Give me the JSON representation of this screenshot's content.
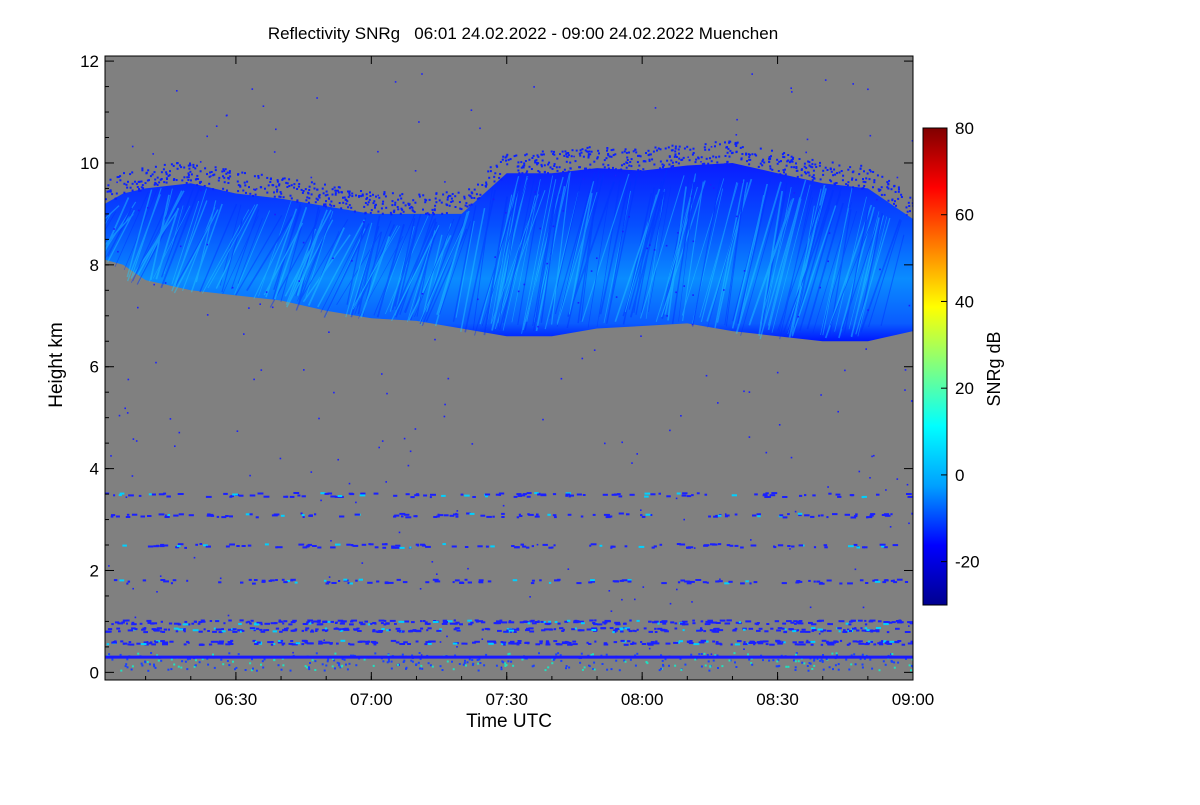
{
  "chart_data": {
    "type": "heatmap",
    "title": "Reflectivity SNRg   06:01 24.02.2022 - 09:00 24.02.2022 Muenchen",
    "xlabel": "Time UTC",
    "ylabel": "Height km",
    "x_range": [
      "06:01",
      "09:00"
    ],
    "xlim_minutes_utc": [
      361,
      540
    ],
    "x_ticks": [
      {
        "label": "06:30",
        "minutes": 390
      },
      {
        "label": "07:00",
        "minutes": 420
      },
      {
        "label": "07:30",
        "minutes": 450
      },
      {
        "label": "08:00",
        "minutes": 480
      },
      {
        "label": "08:30",
        "minutes": 510
      },
      {
        "label": "09:00",
        "minutes": 540
      }
    ],
    "y_ticks": [
      {
        "label": "0",
        "value": 0
      },
      {
        "label": "2",
        "value": 2
      },
      {
        "label": "4",
        "value": 4
      },
      {
        "label": "6",
        "value": 6
      },
      {
        "label": "8",
        "value": 8
      },
      {
        "label": "10",
        "value": 10
      },
      {
        "label": "12",
        "value": 12
      }
    ],
    "ylim": [
      -0.15,
      12.1
    ],
    "background_color": "#808080",
    "colorbar": {
      "label": "SNRg dB",
      "range": [
        -30,
        80
      ],
      "ticks": [
        {
          "label": "-20",
          "value": -20
        },
        {
          "label": "0",
          "value": 0
        },
        {
          "label": "20",
          "value": 20
        },
        {
          "label": "40",
          "value": 40
        },
        {
          "label": "60",
          "value": 60
        },
        {
          "label": "80",
          "value": 80
        }
      ],
      "colormap": [
        "#00008f",
        "#0000ff",
        "#00a0ff",
        "#00ffff",
        "#80ff80",
        "#ffff00",
        "#ff8000",
        "#ff0000",
        "#800000"
      ]
    },
    "cloud_layer": {
      "x_minutes": [
        361,
        365,
        370,
        380,
        390,
        400,
        410,
        420,
        430,
        440,
        450,
        460,
        470,
        480,
        490,
        500,
        510,
        520,
        530,
        540
      ],
      "base_km": [
        8.1,
        8.0,
        7.7,
        7.5,
        7.4,
        7.3,
        7.1,
        6.95,
        6.9,
        6.75,
        6.6,
        6.6,
        6.75,
        6.8,
        6.85,
        6.7,
        6.6,
        6.5,
        6.5,
        6.7
      ],
      "top_km": [
        9.2,
        9.4,
        9.5,
        9.6,
        9.4,
        9.3,
        9.15,
        9.0,
        9.0,
        9.0,
        9.8,
        9.8,
        9.9,
        9.85,
        9.95,
        10.0,
        9.8,
        9.6,
        9.5,
        8.9
      ],
      "snr_db": "-25 to 5"
    },
    "noise_layers_km": [
      3.5,
      3.1,
      2.5,
      1.8,
      1.0,
      0.85,
      0.6
    ],
    "surface_line_km": 0.3
  }
}
